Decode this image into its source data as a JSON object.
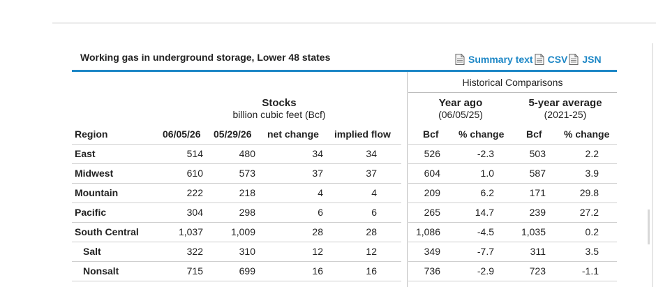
{
  "page": {
    "title": "Working gas in underground storage, Lower 48 states",
    "links": [
      {
        "label": "Summary text",
        "icon": "document-icon"
      },
      {
        "label": "CSV",
        "icon": "document-icon"
      },
      {
        "label": "JSN",
        "icon": "document-icon"
      }
    ],
    "link_color": "#1d87c6"
  },
  "table": {
    "historical_label": "Historical Comparisons",
    "stocks": {
      "title": "Stocks",
      "subtitle": "billion cubic feet (Bcf)"
    },
    "year_ago": {
      "title": "Year ago",
      "subtitle": "(06/05/25)"
    },
    "five_year": {
      "title": "5-year average",
      "subtitle": "(2021-25)"
    },
    "columns": [
      "Region",
      "06/05/26",
      "05/29/26",
      "net change",
      "implied flow",
      "Bcf",
      "% change",
      "Bcf",
      "% change"
    ],
    "rows": [
      {
        "region": "East",
        "indent": false,
        "values": [
          "514",
          "480",
          "34",
          "34",
          "526",
          "-2.3",
          "503",
          "2.2"
        ]
      },
      {
        "region": "Midwest",
        "indent": false,
        "values": [
          "610",
          "573",
          "37",
          "37",
          "604",
          "1.0",
          "587",
          "3.9"
        ]
      },
      {
        "region": "Mountain",
        "indent": false,
        "values": [
          "222",
          "218",
          "4",
          "4",
          "209",
          "6.2",
          "171",
          "29.8"
        ]
      },
      {
        "region": "Pacific",
        "indent": false,
        "values": [
          "304",
          "298",
          "6",
          "6",
          "265",
          "14.7",
          "239",
          "27.2"
        ]
      },
      {
        "region": "South Central",
        "indent": false,
        "values": [
          "1,037",
          "1,009",
          "28",
          "28",
          "1,086",
          "-4.5",
          "1,035",
          "0.2"
        ]
      },
      {
        "region": "Salt",
        "indent": true,
        "values": [
          "322",
          "310",
          "12",
          "12",
          "349",
          "-7.7",
          "311",
          "3.5"
        ]
      },
      {
        "region": "Nonsalt",
        "indent": true,
        "values": [
          "715",
          "699",
          "16",
          "16",
          "736",
          "-2.9",
          "723",
          "-1.1"
        ]
      }
    ]
  }
}
